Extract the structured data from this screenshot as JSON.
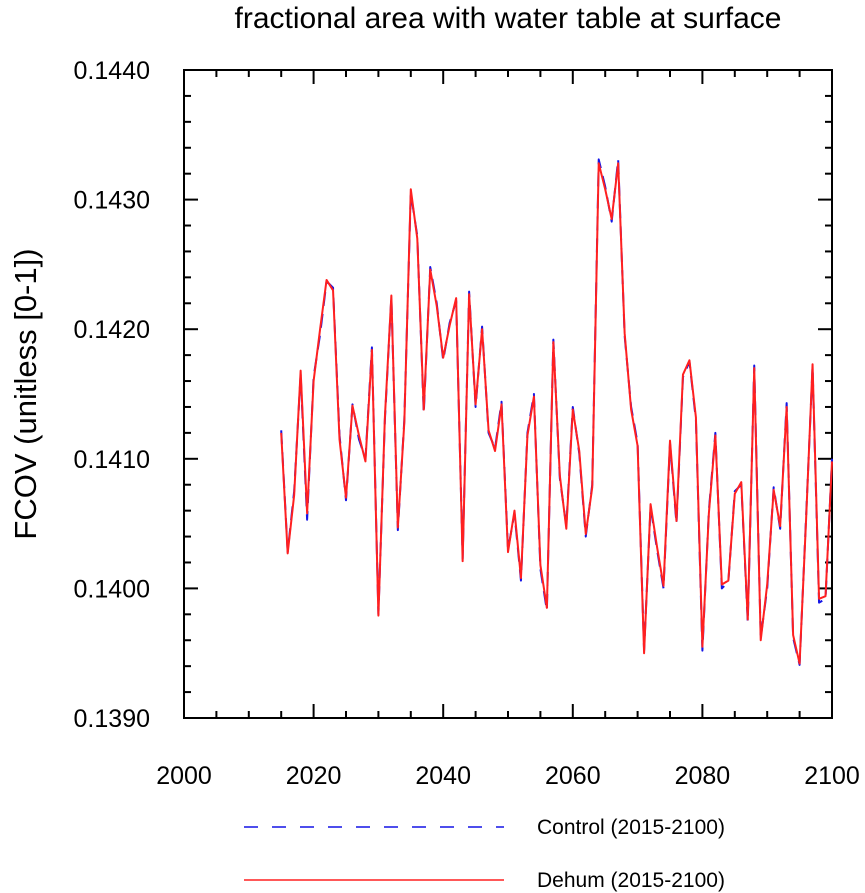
{
  "chart_data": {
    "type": "line",
    "title": "fractional area with water table at surface",
    "ylabel": "FCOV  (unitless [0-1])",
    "xlabel": "",
    "xlim": [
      2000,
      2100
    ],
    "ylim": [
      0.139,
      0.144
    ],
    "x_ticks": [
      2000,
      2020,
      2040,
      2060,
      2080,
      2100
    ],
    "x_tick_labels": [
      "2000",
      "2020",
      "2040",
      "2060",
      "2080",
      "2100"
    ],
    "y_ticks": [
      0.139,
      0.14,
      0.141,
      0.142,
      0.143,
      0.144
    ],
    "y_tick_labels": [
      "0.1390",
      "0.1400",
      "0.1410",
      "0.1420",
      "0.1430",
      "0.1440"
    ],
    "grid": false,
    "legend_position": "bottom",
    "x": [
      2015,
      2016,
      2017,
      2018,
      2019,
      2020,
      2021,
      2022,
      2023,
      2024,
      2025,
      2026,
      2027,
      2028,
      2029,
      2030,
      2031,
      2032,
      2033,
      2034,
      2035,
      2036,
      2037,
      2038,
      2039,
      2040,
      2041,
      2042,
      2043,
      2044,
      2045,
      2046,
      2047,
      2048,
      2049,
      2050,
      2051,
      2052,
      2053,
      2054,
      2055,
      2056,
      2057,
      2058,
      2059,
      2060,
      2061,
      2062,
      2063,
      2064,
      2065,
      2066,
      2067,
      2068,
      2069,
      2070,
      2071,
      2072,
      2073,
      2074,
      2075,
      2076,
      2077,
      2078,
      2079,
      2080,
      2081,
      2082,
      2083,
      2084,
      2085,
      2086,
      2087,
      2088,
      2089,
      2090,
      2091,
      2092,
      2093,
      2094,
      2095,
      2096,
      2097,
      2098,
      2099,
      2100
    ],
    "series": [
      {
        "name": "Control (2015-2100)",
        "color": "#1414e6",
        "dash": "dashed",
        "values": [
          0.14122,
          0.14028,
          0.14075,
          0.14165,
          0.14053,
          0.14163,
          0.14196,
          0.14237,
          0.14232,
          0.14118,
          0.14068,
          0.14142,
          0.14115,
          0.141,
          0.14186,
          0.1398,
          0.1413,
          0.14225,
          0.14045,
          0.1413,
          0.14305,
          0.14272,
          0.14135,
          0.14248,
          0.1422,
          0.14176,
          0.14205,
          0.14222,
          0.14023,
          0.14229,
          0.1414,
          0.14202,
          0.1412,
          0.14108,
          0.14144,
          0.1403,
          0.14058,
          0.14006,
          0.1412,
          0.1415,
          0.14015,
          0.13983,
          0.14192,
          0.14085,
          0.14048,
          0.1414,
          0.14104,
          0.1404,
          0.1408,
          0.14331,
          0.1431,
          0.14283,
          0.14331,
          0.14195,
          0.1414,
          0.14112,
          0.13952,
          0.14063,
          0.1403,
          0.14,
          0.14112,
          0.1405,
          0.14163,
          0.14175,
          0.1413,
          0.13952,
          0.1406,
          0.1412,
          0.14,
          0.14005,
          0.14075,
          0.1408,
          0.13974,
          0.14172,
          0.13962,
          0.14,
          0.14078,
          0.14046,
          0.14143,
          0.13962,
          0.13941,
          0.14055,
          0.14171,
          0.13989,
          0.13992,
          0.141
        ]
      },
      {
        "name": "Dehum (2015-2100)",
        "color": "#ff2020",
        "dash": "solid",
        "values": [
          0.1412,
          0.14027,
          0.14072,
          0.14168,
          0.14058,
          0.1416,
          0.142,
          0.14238,
          0.1423,
          0.14115,
          0.1407,
          0.14141,
          0.14118,
          0.14098,
          0.14184,
          0.13979,
          0.14132,
          0.14226,
          0.14047,
          0.14128,
          0.14308,
          0.1427,
          0.14138,
          0.14246,
          0.14218,
          0.14178,
          0.14203,
          0.14224,
          0.14021,
          0.14227,
          0.14142,
          0.142,
          0.14122,
          0.14106,
          0.14142,
          0.14028,
          0.1406,
          0.14008,
          0.14118,
          0.14148,
          0.14018,
          0.13985,
          0.1419,
          0.14087,
          0.14046,
          0.14138,
          0.14106,
          0.14042,
          0.14078,
          0.14328,
          0.14308,
          0.14285,
          0.14328,
          0.14197,
          0.14138,
          0.1411,
          0.1395,
          0.14065,
          0.14032,
          0.14002,
          0.14114,
          0.14052,
          0.14165,
          0.14176,
          0.14132,
          0.13955,
          0.14058,
          0.14118,
          0.14003,
          0.14006,
          0.14073,
          0.14082,
          0.13976,
          0.1417,
          0.1396,
          0.14003,
          0.14076,
          0.14048,
          0.1414,
          0.13964,
          0.13942,
          0.14053,
          0.14173,
          0.13992,
          0.13994,
          0.14098
        ]
      }
    ]
  }
}
